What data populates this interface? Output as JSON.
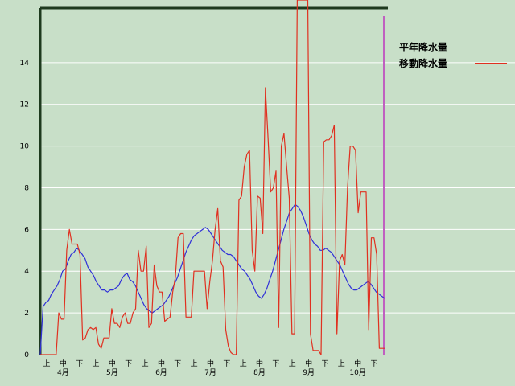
{
  "chart_data": {
    "type": "line",
    "ylim": [
      0,
      17
    ],
    "yticks": [
      0,
      2,
      4,
      6,
      8,
      10,
      12,
      14
    ],
    "x_ticks": [
      "上",
      "中",
      "下",
      "上",
      "中",
      "下",
      "上",
      "中",
      "下",
      "上",
      "中",
      "下",
      "上",
      "中",
      "下",
      "上",
      "中",
      "下",
      "上",
      "中",
      "下"
    ],
    "months": [
      "4月",
      "5月",
      "6月",
      "7月",
      "8月",
      "9月",
      "10月"
    ],
    "grid": true,
    "legend_placement": "top-right",
    "series": [
      {
        "name": "平年降水量",
        "color": "#3030d8",
        "values": [
          0,
          2.3,
          2.5,
          2.6,
          2.9,
          3.1,
          3.3,
          3.6,
          4.0,
          4.1,
          4.5,
          4.8,
          4.9,
          5.1,
          5.0,
          4.8,
          4.6,
          4.2,
          4.0,
          3.8,
          3.5,
          3.3,
          3.1,
          3.1,
          3.0,
          3.1,
          3.1,
          3.2,
          3.3,
          3.6,
          3.8,
          3.9,
          3.6,
          3.5,
          3.3,
          3.0,
          2.7,
          2.4,
          2.2,
          2.1,
          2.0,
          2.1,
          2.2,
          2.3,
          2.4,
          2.6,
          2.8,
          3.1,
          3.4,
          3.7,
          4.1,
          4.5,
          4.9,
          5.2,
          5.5,
          5.7,
          5.8,
          5.9,
          6.0,
          6.1,
          6.0,
          5.8,
          5.6,
          5.4,
          5.2,
          5.0,
          4.9,
          4.8,
          4.8,
          4.7,
          4.5,
          4.3,
          4.1,
          4.0,
          3.8,
          3.6,
          3.3,
          3.0,
          2.8,
          2.7,
          2.9,
          3.2,
          3.6,
          4.0,
          4.5,
          5.0,
          5.5,
          6.0,
          6.4,
          6.8,
          7.0,
          7.2,
          7.1,
          6.9,
          6.6,
          6.2,
          5.8,
          5.5,
          5.3,
          5.2,
          5.0,
          5.0,
          5.1,
          5.0,
          4.9,
          4.7,
          4.5,
          4.3,
          4.0,
          3.7,
          3.4,
          3.2,
          3.1,
          3.1,
          3.2,
          3.3,
          3.4,
          3.5,
          3.4,
          3.2,
          3.0,
          2.9,
          2.8,
          2.7
        ]
      },
      {
        "name": "移動降水量",
        "color": "#e03020",
        "values": [
          0,
          0,
          0,
          0,
          0,
          0,
          0,
          2.0,
          1.7,
          1.7,
          5.0,
          6.0,
          5.3,
          5.3,
          5.3,
          4.8,
          0.7,
          0.8,
          1.2,
          1.3,
          1.2,
          1.3,
          0.5,
          0.3,
          0.8,
          0.8,
          0.8,
          2.2,
          1.5,
          1.5,
          1.3,
          1.8,
          2.0,
          1.5,
          1.5,
          2.0,
          2.2,
          5.0,
          4.0,
          4.0,
          5.2,
          1.3,
          1.5,
          4.3,
          3.3,
          3.0,
          3.0,
          1.6,
          1.7,
          1.8,
          3.0,
          3.7,
          5.6,
          5.8,
          5.8,
          1.8,
          1.8,
          1.8,
          4.0,
          4.0,
          4.0,
          4.0,
          4.0,
          2.2,
          3.5,
          4.5,
          6.0,
          7.0,
          4.5,
          4.2,
          1.2,
          0.4,
          0.1,
          0,
          0,
          7.4,
          7.6,
          9.0,
          9.6,
          9.8,
          5.0,
          4.0,
          7.6,
          7.5,
          5.8,
          12.8,
          10.4,
          7.8,
          8.0,
          8.8,
          1.3,
          10.0,
          10.6,
          9.0,
          7.5,
          1.0,
          1.0,
          17.0,
          17.0,
          17.0,
          17.0,
          17.0,
          1.0,
          0.2,
          0.2,
          0.2,
          0,
          10.2,
          10.3,
          10.3,
          10.5,
          11.0,
          1.0,
          4.5,
          4.8,
          4.3,
          8.0,
          10.0,
          10.0,
          9.8,
          6.8,
          7.8,
          7.8,
          7.8,
          1.2,
          5.6,
          5.6,
          4.8,
          0.3,
          0.3,
          0.3
        ]
      }
    ]
  }
}
